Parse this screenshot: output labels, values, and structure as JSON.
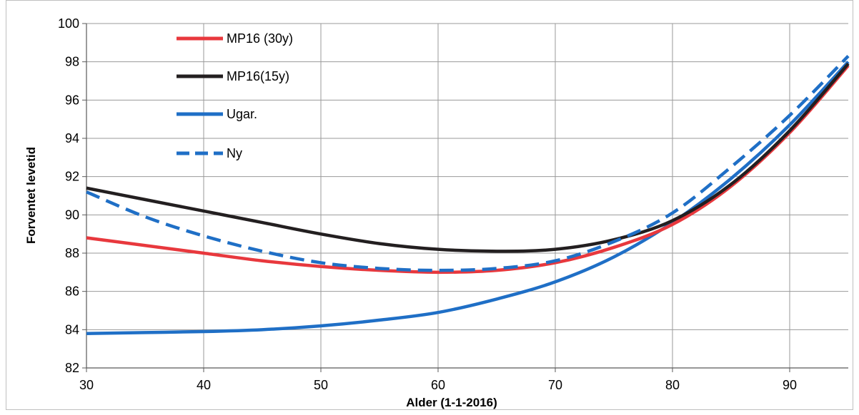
{
  "chart_data": {
    "type": "line",
    "title": "",
    "xlabel": "Alder (1-1-2016)",
    "ylabel": "Forventet levetid",
    "xlim": [
      30,
      95
    ],
    "ylim": [
      82,
      100
    ],
    "xticks": [
      30,
      40,
      50,
      60,
      70,
      80,
      90
    ],
    "yticks": [
      82,
      84,
      86,
      88,
      90,
      92,
      94,
      96,
      98,
      100
    ],
    "grid": true,
    "legend_position": "top-left",
    "x": [
      30,
      35,
      40,
      45,
      50,
      55,
      60,
      65,
      70,
      75,
      80,
      85,
      90,
      95
    ],
    "series": [
      {
        "name": "MP16 (30y)",
        "color": "#e8383d",
        "dash": "solid",
        "values": [
          88.8,
          88.4,
          88.0,
          87.6,
          87.3,
          87.1,
          87.0,
          87.1,
          87.5,
          88.3,
          89.5,
          91.5,
          94.3,
          97.8
        ]
      },
      {
        "name": "MP16(15y)",
        "color": "#231f20",
        "dash": "solid",
        "values": [
          91.4,
          90.8,
          90.2,
          89.6,
          89.0,
          88.5,
          88.2,
          88.1,
          88.2,
          88.7,
          89.7,
          91.6,
          94.4,
          97.9
        ]
      },
      {
        "name": "Ugar.",
        "color": "#1f6fc6",
        "dash": "solid",
        "values": [
          83.8,
          83.85,
          83.9,
          84.0,
          84.2,
          84.5,
          84.9,
          85.6,
          86.5,
          87.8,
          89.6,
          91.9,
          94.7,
          98.0
        ]
      },
      {
        "name": "Ny",
        "color": "#1f6fc6",
        "dash": "dashed",
        "values": [
          91.2,
          89.9,
          88.9,
          88.1,
          87.5,
          87.2,
          87.1,
          87.2,
          87.6,
          88.6,
          90.1,
          92.5,
          95.2,
          98.3
        ]
      }
    ]
  }
}
